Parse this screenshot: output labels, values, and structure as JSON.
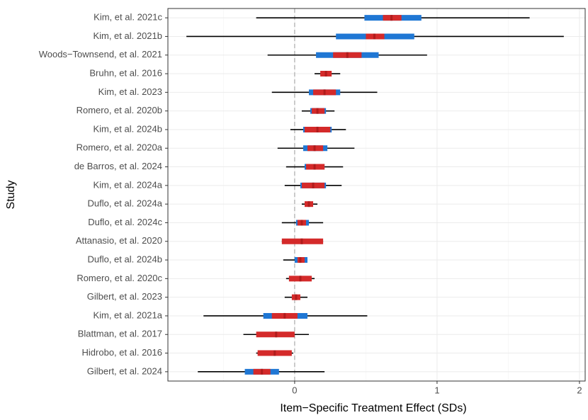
{
  "chart_data": {
    "type": "forest",
    "xlabel": "Item−Specific Treatment Effect (SDs)",
    "ylabel": "Study",
    "xlim": [
      -0.89,
      2.04
    ],
    "xticks": [
      0,
      1,
      2
    ],
    "reference_line": 0,
    "grid": true,
    "categories": [
      "Kim, et al. 2021c",
      "Kim, et al. 2021b",
      "Woods−Townsend, et al. 2021",
      "Bruhn, et al. 2016",
      "Kim, et al. 2023",
      "Romero, et al. 2020b",
      "Kim, et al. 2024b",
      "Romero, et al. 2020a",
      "de Barros, et al. 2024",
      "Kim, et al. 2024a",
      "Duflo, et al. 2024a",
      "Duflo, et al. 2024c",
      "Attanasio, et al. 2020",
      "Duflo, et al. 2024b",
      "Romero, et al. 2020c",
      "Gilbert, et al. 2023",
      "Kim, et al. 2021a",
      "Blattman, et al. 2017",
      "Hidrobo, et al. 2016",
      "Gilbert, et al. 2024"
    ],
    "intervals": [
      {
        "color": "#000000",
        "low": [
          -0.27,
          -0.76,
          -0.19,
          0.14,
          -0.16,
          0.05,
          -0.03,
          -0.12,
          -0.06,
          -0.07,
          0.05,
          -0.09,
          -0.09,
          -0.08,
          -0.06,
          -0.07,
          -0.64,
          -0.36,
          -0.27,
          -0.68
        ],
        "high": [
          1.65,
          1.89,
          0.93,
          0.32,
          0.58,
          0.28,
          0.36,
          0.42,
          0.34,
          0.33,
          0.16,
          0.2,
          0.2,
          0.09,
          0.14,
          0.09,
          0.51,
          0.1,
          -0.01,
          0.21
        ]
      },
      {
        "color": "#1f77d4",
        "low": [
          0.49,
          0.29,
          0.15,
          null,
          0.1,
          0.11,
          0.06,
          0.06,
          0.07,
          0.04,
          null,
          0.01,
          null,
          0.0,
          null,
          null,
          -0.22,
          null,
          null,
          -0.35
        ],
        "high": [
          0.89,
          0.84,
          0.59,
          null,
          0.32,
          0.22,
          0.26,
          0.23,
          0.21,
          0.22,
          null,
          0.1,
          null,
          0.09,
          null,
          null,
          0.09,
          null,
          null,
          -0.11
        ]
      },
      {
        "color": "#d42a2a",
        "low": [
          0.62,
          0.5,
          0.27,
          0.18,
          0.13,
          0.12,
          0.07,
          0.09,
          0.08,
          0.05,
          0.07,
          0.02,
          -0.09,
          0.02,
          -0.04,
          -0.02,
          -0.16,
          -0.27,
          -0.26,
          -0.29
        ],
        "high": [
          0.75,
          0.63,
          0.47,
          0.26,
          0.29,
          0.21,
          0.25,
          0.2,
          0.21,
          0.21,
          0.13,
          0.08,
          0.2,
          0.07,
          0.12,
          0.04,
          0.02,
          0.0,
          -0.02,
          -0.17
        ]
      }
    ],
    "estimate_color": "#b01c1c",
    "estimates": [
      0.68,
      0.56,
      0.37,
      0.22,
      0.21,
      0.16,
      0.16,
      0.14,
      0.14,
      0.13,
      0.1,
      0.05,
      0.05,
      0.04,
      0.04,
      0.01,
      -0.07,
      -0.13,
      -0.14,
      -0.23
    ]
  }
}
